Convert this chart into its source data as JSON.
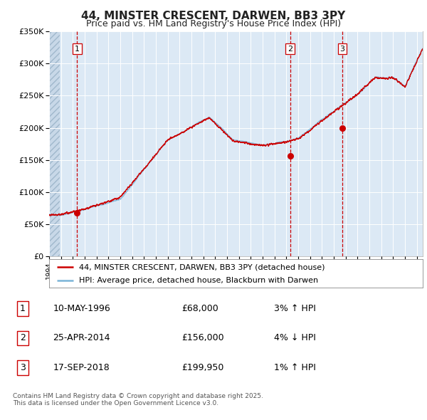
{
  "title": "44, MINSTER CRESCENT, DARWEN, BB3 3PY",
  "subtitle": "Price paid vs. HM Land Registry's House Price Index (HPI)",
  "red_label": "44, MINSTER CRESCENT, DARWEN, BB3 3PY (detached house)",
  "blue_label": "HPI: Average price, detached house, Blackburn with Darwen",
  "transactions": [
    {
      "num": 1,
      "date": "10-MAY-1996",
      "price": 68000,
      "hpi_diff": "3% ↑ HPI",
      "year": 1996.36
    },
    {
      "num": 2,
      "date": "25-APR-2014",
      "price": 156000,
      "hpi_diff": "4% ↓ HPI",
      "year": 2014.32
    },
    {
      "num": 3,
      "date": "17-SEP-2018",
      "price": 199950,
      "hpi_diff": "1% ↑ HPI",
      "year": 2018.71
    }
  ],
  "footnote": "Contains HM Land Registry data © Crown copyright and database right 2025.\nThis data is licensed under the Open Government Licence v3.0.",
  "ylim": [
    0,
    350000
  ],
  "xlim_start": 1994.0,
  "xlim_end": 2025.5,
  "background_color": "#dce9f5",
  "grid_color": "#ffffff",
  "hatch_region_end": 1994.9,
  "vline_colors": [
    "#cc0000",
    "#cc0000",
    "#cc0000"
  ],
  "red_line_color": "#cc0000",
  "blue_line_color": "#7ab4d8",
  "marker_color": "#cc0000"
}
